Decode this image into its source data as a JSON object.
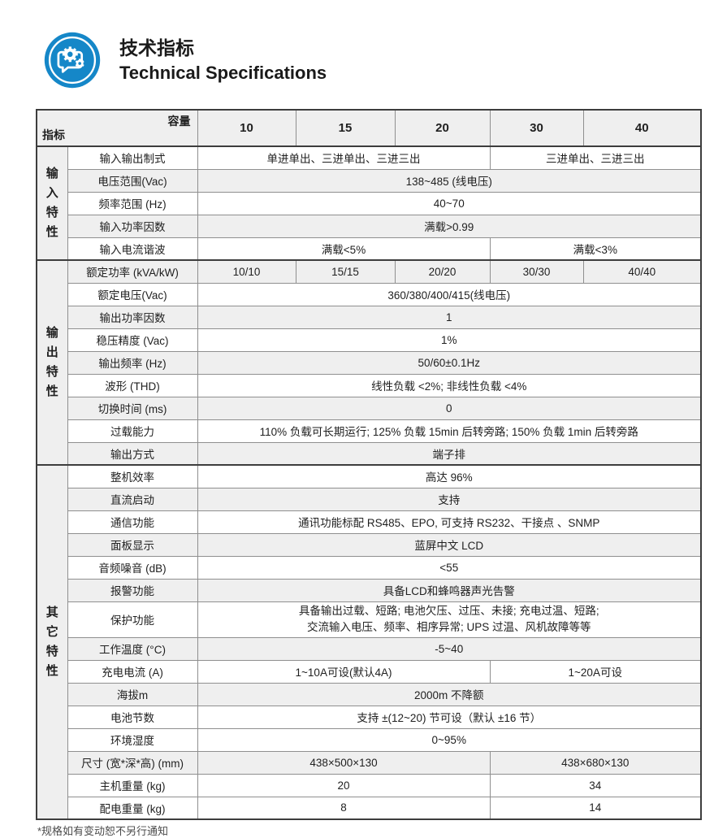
{
  "header": {
    "title_zh": "技术指标",
    "title_en": "Technical Specifications",
    "icon": "gear-chat-icon"
  },
  "colors": {
    "accent_blue": "#1587c8",
    "row_shade": "#efefef",
    "grid_line": "#8f8f8f",
    "frame_line": "#3d3d3d"
  },
  "table": {
    "corner": {
      "top_right": "容量",
      "bottom_left": "指标"
    },
    "columns": [
      "10",
      "15",
      "20",
      "30",
      "40"
    ],
    "groups": [
      {
        "name": "输入特性",
        "rows": [
          {
            "label": "输入输出制式",
            "shaded": false,
            "cells": [
              {
                "text": "单进单出、三进单出、三进三出",
                "span": 3
              },
              {
                "text": "三进单出、三进三出",
                "span": 2
              }
            ]
          },
          {
            "label": "电压范围(Vac)",
            "shaded": true,
            "cells": [
              {
                "text": "138~485 (线电压)",
                "span": 5
              }
            ]
          },
          {
            "label": "频率范围 (Hz)",
            "shaded": false,
            "cells": [
              {
                "text": "40~70",
                "span": 5
              }
            ]
          },
          {
            "label": "输入功率因数",
            "shaded": true,
            "cells": [
              {
                "text": "满载>0.99",
                "span": 5
              }
            ]
          },
          {
            "label": "输入电流谐波",
            "shaded": false,
            "cells": [
              {
                "text": "满载<5%",
                "span": 3
              },
              {
                "text": "满载<3%",
                "span": 2
              }
            ]
          }
        ]
      },
      {
        "name": "输出特性",
        "rows": [
          {
            "label": "额定功率 (kVA/kW)",
            "shaded": true,
            "cells": [
              {
                "text": "10/10",
                "span": 1
              },
              {
                "text": "15/15",
                "span": 1
              },
              {
                "text": "20/20",
                "span": 1
              },
              {
                "text": "30/30",
                "span": 1
              },
              {
                "text": "40/40",
                "span": 1
              }
            ]
          },
          {
            "label": "额定电压(Vac)",
            "shaded": false,
            "cells": [
              {
                "text": "360/380/400/415(线电压)",
                "span": 5
              }
            ]
          },
          {
            "label": "输出功率因数",
            "shaded": true,
            "cells": [
              {
                "text": "1",
                "span": 5
              }
            ]
          },
          {
            "label": "稳压精度 (Vac)",
            "shaded": false,
            "cells": [
              {
                "text": "1%",
                "span": 5
              }
            ]
          },
          {
            "label": "输出频率 (Hz)",
            "shaded": true,
            "cells": [
              {
                "text": "50/60±0.1Hz",
                "span": 5
              }
            ]
          },
          {
            "label": "波形 (THD)",
            "shaded": false,
            "cells": [
              {
                "text": "线性负载 <2%; 非线性负载 <4%",
                "span": 5
              }
            ]
          },
          {
            "label": "切换时间 (ms)",
            "shaded": true,
            "cells": [
              {
                "text": "0",
                "span": 5
              }
            ]
          },
          {
            "label": "过载能力",
            "shaded": false,
            "cells": [
              {
                "text": "110% 负载可长期运行; 125% 负载 15min 后转旁路; 150% 负载 1min 后转旁路",
                "span": 5
              }
            ]
          },
          {
            "label": "输出方式",
            "shaded": true,
            "cells": [
              {
                "text": "端子排",
                "span": 5
              }
            ]
          }
        ]
      },
      {
        "name": "其它特性",
        "rows": [
          {
            "label": "整机效率",
            "shaded": false,
            "cells": [
              {
                "text": "高达 96%",
                "span": 5
              }
            ]
          },
          {
            "label": "直流启动",
            "shaded": true,
            "cells": [
              {
                "text": "支持",
                "span": 5
              }
            ]
          },
          {
            "label": "通信功能",
            "shaded": false,
            "cells": [
              {
                "text": "通讯功能标配 RS485、EPO, 可支持 RS232、干接点 、SNMP",
                "span": 5
              }
            ]
          },
          {
            "label": "面板显示",
            "shaded": true,
            "cells": [
              {
                "text": "蓝屏中文 LCD",
                "span": 5
              }
            ]
          },
          {
            "label": "音频噪音 (dB)",
            "shaded": false,
            "cells": [
              {
                "text": "<55",
                "span": 5
              }
            ]
          },
          {
            "label": "报警功能",
            "shaded": true,
            "cells": [
              {
                "text": "具备LCD和蜂鸣器声光告警",
                "span": 5
              }
            ]
          },
          {
            "label": "保护功能",
            "shaded": false,
            "tall": true,
            "cells": [
              {
                "lines": [
                  "具备输出过载、短路; 电池欠压、过压、未接; 充电过温、短路;",
                  "交流输入电压、频率、相序异常; UPS 过温、风机故障等等"
                ],
                "span": 5
              }
            ]
          },
          {
            "label": "工作温度 (°C)",
            "shaded": true,
            "cells": [
              {
                "text": "-5~40",
                "span": 5
              }
            ]
          },
          {
            "label": "充电电流 (A)",
            "shaded": false,
            "cells": [
              {
                "text": "1~10A可设(默认4A)",
                "span": 3
              },
              {
                "text": "1~20A可设",
                "span": 2
              }
            ]
          },
          {
            "label": "海拔m",
            "shaded": true,
            "cells": [
              {
                "text": "2000m 不降额",
                "span": 5
              }
            ]
          },
          {
            "label": "电池节数",
            "shaded": false,
            "cells": [
              {
                "text": "支持 ±(12~20) 节可设（默认 ±16 节）",
                "span": 5
              }
            ]
          },
          {
            "label": "环境湿度",
            "shaded": false,
            "cells": [
              {
                "text": "0~95%",
                "span": 5
              }
            ]
          },
          {
            "label": "尺寸 (宽*深*高) (mm)",
            "shaded": true,
            "cells": [
              {
                "text": "438×500×130",
                "span": 3
              },
              {
                "text": "438×680×130",
                "span": 2
              }
            ]
          },
          {
            "label": "主机重量 (kg)",
            "shaded": false,
            "cells": [
              {
                "text": "20",
                "span": 3
              },
              {
                "text": "34",
                "span": 2
              }
            ]
          },
          {
            "label": "配电重量 (kg)",
            "shaded": false,
            "cells": [
              {
                "text": "8",
                "span": 3
              },
              {
                "text": "14",
                "span": 2
              }
            ]
          }
        ]
      }
    ]
  },
  "footnote": "*规格如有变动恕不另行通知"
}
